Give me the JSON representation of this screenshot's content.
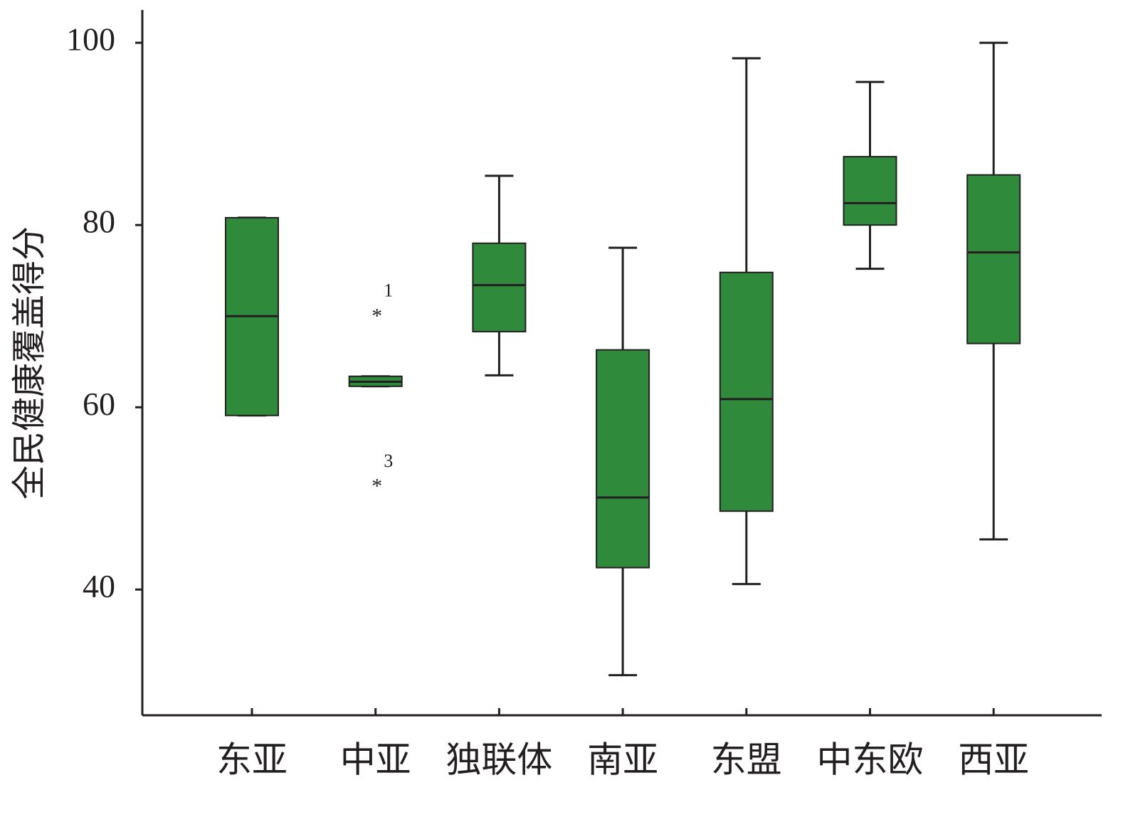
{
  "chart_data": {
    "type": "box",
    "y_label": "全民健康覆盖得分",
    "categories": [
      "东亚",
      "中亚",
      "独联体",
      "南亚",
      "东盟",
      "中东欧",
      "西亚"
    ],
    "color": "#2f8a3c",
    "ylim": [
      26.2,
      103.6
    ],
    "yticks": [
      40,
      60,
      80,
      100
    ],
    "boxes": [
      {
        "low": 59.1,
        "q1": 59.1,
        "median": 70.0,
        "q3": 80.8,
        "high": 80.8,
        "outliers": []
      },
      {
        "low": 62.3,
        "q1": 62.3,
        "median": 62.8,
        "q3": 63.4,
        "high": 63.4,
        "outliers": [
          {
            "value": 70.3,
            "label": "1"
          },
          {
            "value": 51.6,
            "label": "3"
          }
        ]
      },
      {
        "low": 63.5,
        "q1": 68.3,
        "median": 73.4,
        "q3": 78.0,
        "high": 85.4,
        "outliers": []
      },
      {
        "low": 30.6,
        "q1": 42.4,
        "median": 50.1,
        "q3": 66.3,
        "high": 77.5,
        "outliers": []
      },
      {
        "low": 40.6,
        "q1": 48.6,
        "median": 60.9,
        "q3": 74.8,
        "high": 98.3,
        "outliers": []
      },
      {
        "low": 75.2,
        "q1": 80.0,
        "median": 82.4,
        "q3": 87.5,
        "high": 95.7,
        "outliers": []
      },
      {
        "low": 45.5,
        "q1": 67.0,
        "median": 77.0,
        "q3": 85.5,
        "high": 100,
        "outliers": []
      }
    ]
  }
}
